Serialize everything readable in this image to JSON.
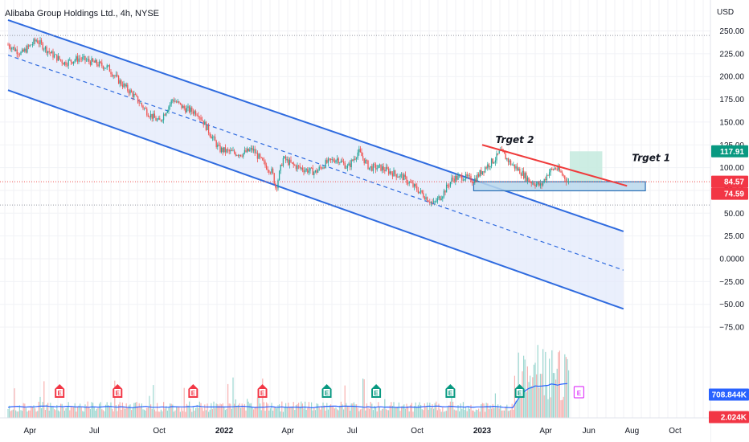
{
  "header": {
    "title": "Alibaba Group Holdings Ltd., 4h, NYSE",
    "currency": "USD"
  },
  "colors": {
    "channel_line": "#2f6bdf",
    "channel_fill": "#e3e9fb",
    "grid": "#f1f2f6",
    "up_candle": "#26a69a",
    "down_candle": "#ef5350",
    "resistance": "#ef3b3b",
    "support_fill": "#b9d7ec",
    "support_border": "#2a6fb5",
    "target_fill": "#c8ebe0",
    "tag_green": "#089981",
    "tag_red": "#f23645",
    "tag_blue": "#2962ff"
  },
  "annotations": {
    "target1": "Trget 1",
    "target2": "Trget 2"
  },
  "price_tags": [
    {
      "label": "117.91",
      "value": 117.91,
      "color": "tag_green"
    },
    {
      "label": "84.57",
      "value": 84.57,
      "color": "tag_red"
    },
    {
      "label": "74.59",
      "value": 74.59,
      "color": "tag_red"
    }
  ],
  "volume_tags": [
    {
      "label": "708.844K",
      "color": "tag_blue"
    },
    {
      "label": "2.024K",
      "color": "tag_red"
    }
  ],
  "chart_data": {
    "type": "line",
    "title": "Alibaba Group Holdings Ltd., 4h, NYSE",
    "xlabel": "",
    "ylabel": "USD",
    "ylim": [
      -57,
      255
    ],
    "grid": true,
    "y_ticks": [
      "250.00",
      "225.00",
      "200.00",
      "175.00",
      "150.00",
      "125.00",
      "100.00",
      "75.00",
      "50.00",
      "25.00",
      "0.0000",
      "−25.00",
      "−50.00",
      "−75.00"
    ],
    "y_tick_values": [
      250,
      225,
      200,
      175,
      150,
      125,
      100,
      75,
      50,
      25,
      0,
      -25,
      -50,
      -75
    ],
    "x_ticks": [
      "Apr",
      "Jul",
      "Oct",
      "2022",
      "Apr",
      "Jul",
      "Oct",
      "2023",
      "Apr",
      "Jun",
      "Aug",
      "Oct"
    ],
    "x_tick_dates": [
      "2021-04-01",
      "2021-07-01",
      "2021-10-01",
      "2022-01-01",
      "2022-04-01",
      "2022-07-01",
      "2022-10-01",
      "2023-01-01",
      "2023-04-01",
      "2023-06-01",
      "2023-08-01",
      "2023-10-01"
    ],
    "bold_x_ticks": [
      "2022",
      "2023"
    ],
    "series": [
      {
        "x": [
          "2021-03-01",
          "2021-03-20",
          "2021-04-10",
          "2021-05-01",
          "2021-05-20",
          "2021-06-10",
          "2021-07-01",
          "2021-07-20",
          "2021-08-05",
          "2021-08-25",
          "2021-09-15",
          "2021-10-01",
          "2021-10-20",
          "2021-11-05",
          "2021-11-25",
          "2021-12-10",
          "2021-12-25",
          "2022-01-10",
          "2022-01-25",
          "2022-02-10",
          "2022-02-25",
          "2022-03-10",
          "2022-03-15",
          "2022-03-25",
          "2022-04-10",
          "2022-04-25",
          "2022-05-10",
          "2022-05-25",
          "2022-06-10",
          "2022-06-25",
          "2022-07-10",
          "2022-07-25",
          "2022-08-10",
          "2022-08-25",
          "2022-09-10",
          "2022-09-25",
          "2022-10-10",
          "2022-10-24",
          "2022-11-05",
          "2022-11-20",
          "2022-12-05",
          "2022-12-20",
          "2023-01-05",
          "2023-01-20",
          "2023-01-27",
          "2023-02-10",
          "2023-02-25",
          "2023-03-10",
          "2023-03-25",
          "2023-04-05",
          "2023-04-15",
          "2023-04-25",
          "2023-05-05"
        ],
        "values": [
          235,
          225,
          240,
          225,
          215,
          220,
          215,
          210,
          195,
          180,
          160,
          150,
          175,
          165,
          160,
          140,
          120,
          117,
          115,
          120,
          105,
          95,
          77,
          110,
          102,
          98,
          95,
          105,
          110,
          100,
          118,
          100,
          100,
          95,
          90,
          80,
          70,
          60,
          70,
          88,
          90,
          86,
          100,
          110,
          118,
          105,
          95,
          85,
          80,
          95,
          100,
          92,
          82
        ]
      }
    ],
    "volume_ylim": [
      0,
      140
    ],
    "earnings_markers": [
      {
        "date": "2021-05-13",
        "color": "down"
      },
      {
        "date": "2021-08-03",
        "color": "down"
      },
      {
        "date": "2021-11-18",
        "color": "down"
      },
      {
        "date": "2022-02-24",
        "color": "down"
      },
      {
        "date": "2022-05-26",
        "color": "up"
      },
      {
        "date": "2022-08-04",
        "color": "up"
      },
      {
        "date": "2022-11-17",
        "color": "up"
      },
      {
        "date": "2023-02-23",
        "color": "up"
      },
      {
        "date": "2023-05-18",
        "color": "future"
      }
    ],
    "drawings": {
      "channel": {
        "upper": {
          "start": [
            "2021-03-01",
            262
          ],
          "end": [
            "2023-07-20",
            30
          ]
        },
        "lower": {
          "start": [
            "2021-03-01",
            185
          ],
          "end": [
            "2023-07-20",
            -55
          ]
        },
        "mid": {
          "start": [
            "2021-03-01",
            223.5
          ],
          "end": [
            "2023-07-20",
            -12.5
          ]
        }
      },
      "resistance_line": {
        "start": [
          "2023-01-01",
          125
        ],
        "end": [
          "2023-07-25",
          80
        ]
      },
      "support_box": {
        "x": [
          "2022-12-20",
          "2023-08-20"
        ],
        "y": [
          74.59,
          84.57
        ]
      },
      "target_box": {
        "x": [
          "2023-05-05",
          "2023-06-20"
        ],
        "y": [
          84.57,
          117.91
        ]
      },
      "hlines": [
        {
          "value": 84.57,
          "style": "dotted",
          "color": "down"
        },
        {
          "value": 245,
          "style": "dotted",
          "color": "grey"
        },
        {
          "value": 59,
          "style": "dotted",
          "color": "grey"
        }
      ]
    }
  }
}
